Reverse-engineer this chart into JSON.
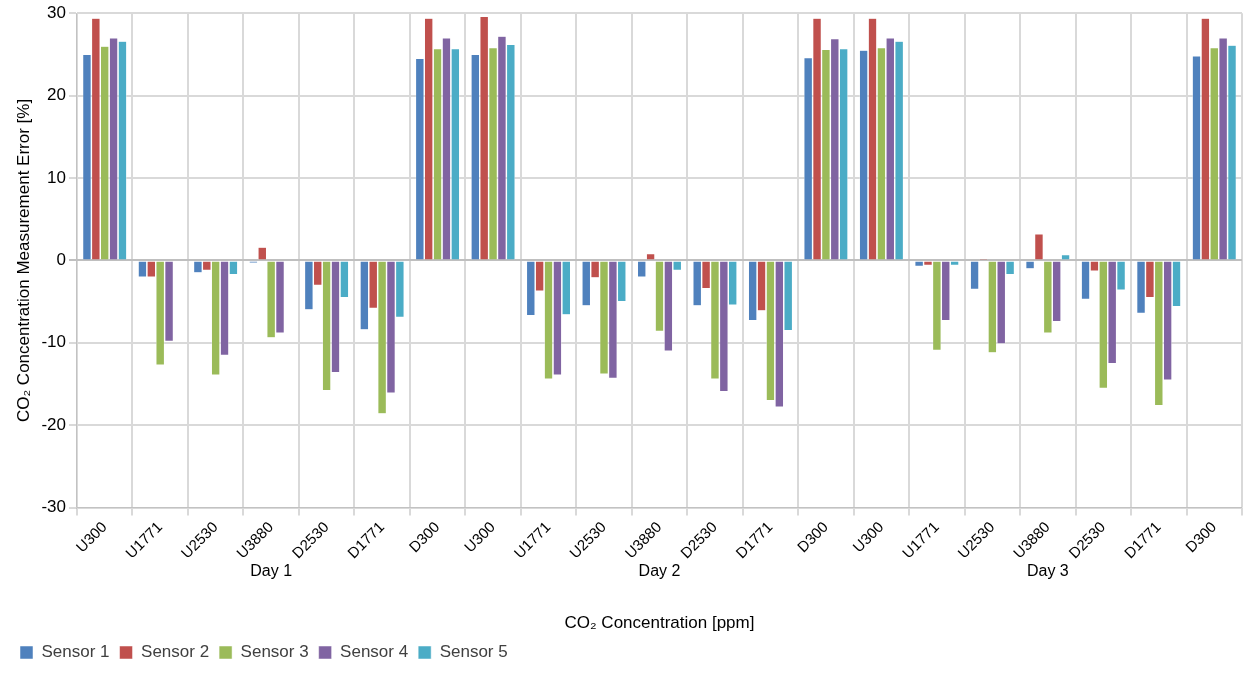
{
  "chart_data": {
    "type": "bar",
    "xlabel": "CO₂ Concentration [ppm]",
    "ylabel": "CO₂ Concentration Measurement Error [%]",
    "categories": [
      "U300",
      "U1771",
      "U2530",
      "U3880",
      "D2530",
      "D1771",
      "D300",
      "U300",
      "U1771",
      "U2530",
      "U3880",
      "D2530",
      "D1771",
      "D300",
      "U300",
      "U1771",
      "U2530",
      "U3880",
      "D2530",
      "D1771",
      "D300"
    ],
    "series": [
      {
        "name": "Sensor 1",
        "color": "#4f81bd",
        "values": [
          25,
          -2,
          -1.5,
          -0.3,
          -6,
          -8.4,
          24.5,
          25,
          -6.7,
          -5.5,
          -2,
          -5.5,
          -7.3,
          24.6,
          25.5,
          -0.7,
          -3.5,
          -1,
          -4.7,
          -6.4,
          24.8
        ]
      },
      {
        "name": "Sensor 2",
        "color": "#c0504d",
        "values": [
          29.4,
          -2,
          -1.2,
          1.6,
          -3,
          -5.8,
          29.4,
          29.6,
          -3.7,
          -2.1,
          0.8,
          -3.4,
          -6.1,
          29.4,
          29.4,
          -0.6,
          0.2,
          3.2,
          -1.3,
          -4.5,
          29.4
        ]
      },
      {
        "name": "Sensor 3",
        "color": "#9bbb59",
        "values": [
          26,
          -12.7,
          -13.9,
          -9.4,
          -15.8,
          -18.6,
          25.7,
          25.8,
          -14.4,
          -13.8,
          -8.6,
          -14.4,
          -17,
          25.6,
          25.8,
          -10.9,
          -11.2,
          -8.8,
          -15.5,
          -17.6,
          25.8
        ]
      },
      {
        "name": "Sensor 4",
        "color": "#8064a2",
        "values": [
          27,
          -9.8,
          -11.5,
          -8.8,
          -13.6,
          -16.1,
          27,
          27.2,
          -13.9,
          -14.3,
          -11,
          -15.9,
          -17.8,
          26.9,
          27,
          -7.3,
          -10.1,
          -7.4,
          -12.5,
          -14.5,
          27
        ]
      },
      {
        "name": "Sensor 5",
        "color": "#4bacc6",
        "values": [
          26.6,
          0,
          -1.7,
          0,
          -4.5,
          -6.9,
          25.7,
          26.2,
          -6.6,
          -5,
          -1.2,
          -5.4,
          -8.5,
          25.7,
          26.6,
          -0.6,
          -1.7,
          0.7,
          -3.6,
          -5.6,
          26.1
        ]
      }
    ],
    "ylim": [
      -30,
      30
    ],
    "yticks": [
      -30,
      -20,
      -10,
      0,
      10,
      20,
      30
    ],
    "grid": true,
    "legend": "bottom left",
    "annotations": [
      "Day 1",
      "Day 2",
      "Day 3"
    ]
  }
}
